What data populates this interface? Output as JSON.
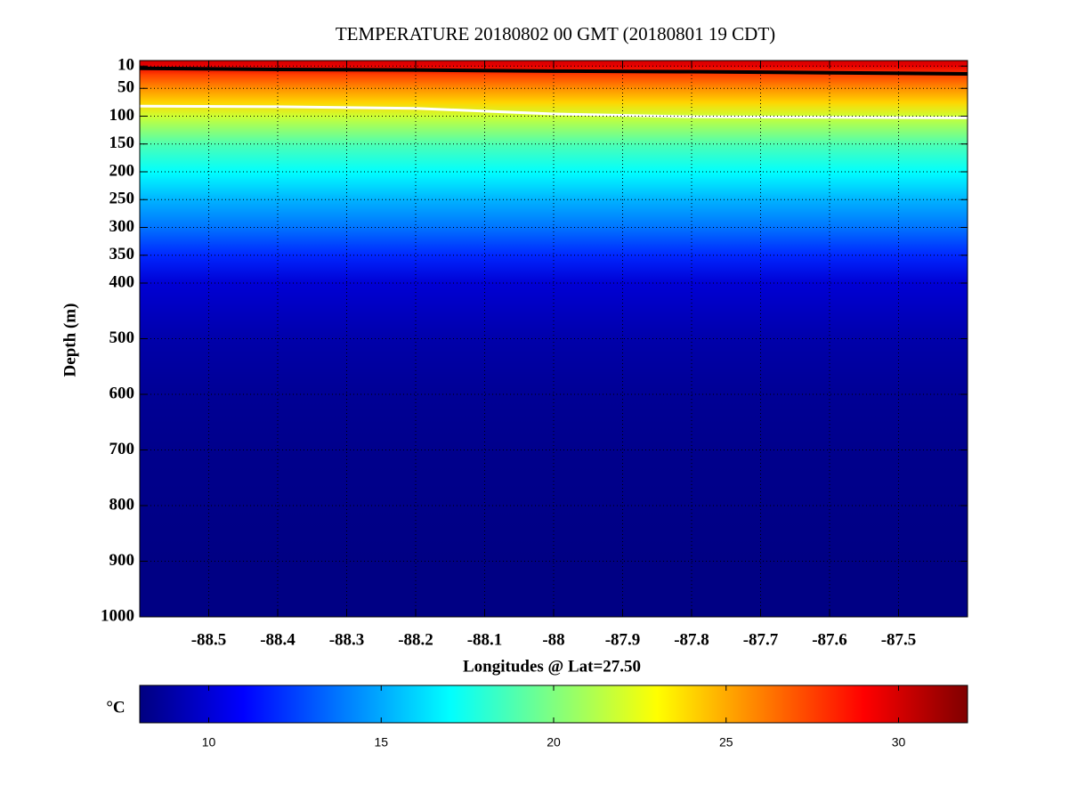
{
  "chart_data": {
    "type": "heatmap",
    "title": "TEMPERATURE 20180802 00 GMT (20180801 19 CDT)",
    "x_label": "Longitudes @ Lat=27.50",
    "y_label": "Depth (m)",
    "xlim": [
      -88.6,
      -87.4
    ],
    "xticks": [
      -88.5,
      -88.4,
      -88.3,
      -88.2,
      -88.1,
      -88,
      -87.9,
      -87.8,
      -87.7,
      -87.6,
      -87.5
    ],
    "ylim": [
      0,
      1000
    ],
    "y_reversed": true,
    "yticks": [
      10,
      50,
      100,
      150,
      200,
      250,
      300,
      350,
      400,
      500,
      600,
      700,
      800,
      900,
      1000
    ],
    "grid": true,
    "colormap": "jet",
    "depths": [
      0,
      10,
      25,
      50,
      75,
      100,
      150,
      200,
      250,
      300,
      350,
      400,
      500,
      600,
      700,
      800,
      900,
      1000
    ],
    "temperatures": [
      30,
      29.5,
      27.5,
      25.6,
      24,
      21.8,
      18.8,
      17,
      15.2,
      13.7,
      11.9,
      10,
      9,
      8.5,
      8.3,
      8.2,
      8.1,
      8.1
    ],
    "colorbar": {
      "label": "°C",
      "lim": [
        8,
        32
      ],
      "ticks": [
        10,
        15,
        20,
        25,
        30
      ]
    },
    "contours": [
      {
        "color": "#000000",
        "longitudes": [
          -88.6,
          -88.4,
          -88.2,
          -88.0,
          -87.8,
          -87.6,
          -87.4
        ],
        "depths": [
          14,
          16,
          17,
          19,
          20,
          22,
          24
        ]
      },
      {
        "color": "#ffffff",
        "longitudes": [
          -88.6,
          -88.4,
          -88.2,
          -88.0,
          -87.8,
          -87.6,
          -87.4
        ],
        "depths": [
          82,
          83,
          86,
          96,
          101,
          102,
          103
        ]
      }
    ]
  }
}
